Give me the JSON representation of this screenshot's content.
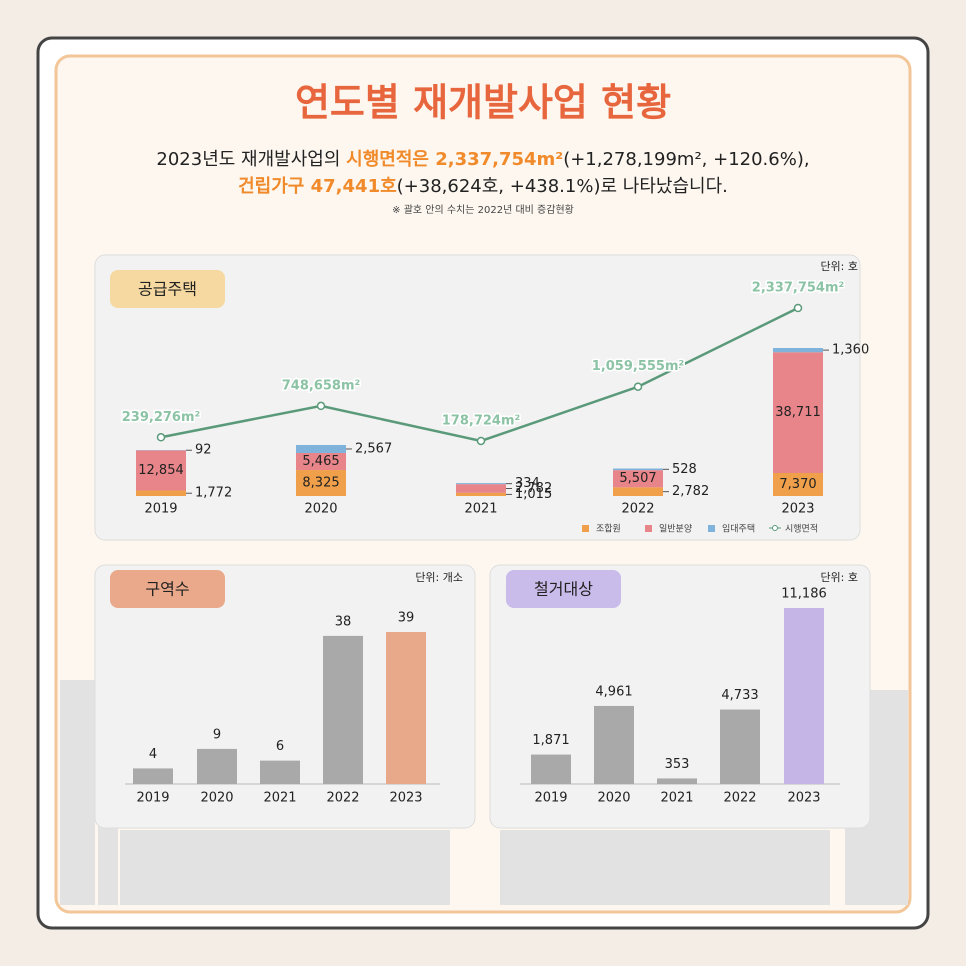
{
  "header": {
    "title": "연도별 재개발사업 현황",
    "subtitle": [
      [
        "2023년도 재개발사업의 ",
        "시행면적은 2,337,754m²",
        "(+1,278,199m², +120.6%),"
      ],
      [
        "건립가구 47,441호",
        "(+38,624호, +438.1%)로 나타났습니다."
      ]
    ],
    "note": "※ 괄호 안의 수치는 2022년 대비 증감현황"
  },
  "chart_data": [
    {
      "type": "bar",
      "stacked": true,
      "title": "공급주택",
      "unit": "단위: 호",
      "categories": [
        "2019",
        "2020",
        "2021",
        "2022",
        "2023"
      ],
      "series": [
        {
          "name": "조합원",
          "color": "#f0a04a",
          "values": [
            1772,
            8325,
            1015,
            2782,
            7370
          ],
          "value_labels": [
            "1,772",
            "8,325",
            "1,015",
            "2,782",
            "7,370"
          ]
        },
        {
          "name": "일반분양",
          "color": "#e8858a",
          "values": [
            12854,
            5465,
            2782,
            5507,
            38711
          ],
          "value_labels": [
            "12,854",
            "5,465",
            "2,782",
            "5,507",
            "38,711"
          ]
        },
        {
          "name": "임대주택",
          "color": "#7fb3db",
          "values": [
            92,
            2567,
            334,
            528,
            1360
          ],
          "value_labels": [
            "92",
            "2,567",
            "334",
            "528",
            "1,360"
          ]
        },
        {
          "name": "시행면적",
          "type": "line",
          "color": "#5a9a7a",
          "values": [
            239276,
            748658,
            178724,
            1059555,
            2337754
          ],
          "value_labels": [
            "239,276m²",
            "748,658m²",
            "178,724m²",
            "1,059,555m²",
            "2,337,754m²"
          ]
        }
      ]
    },
    {
      "type": "bar",
      "title": "구역수",
      "unit": "단위: 개소",
      "categories": [
        "2019",
        "2020",
        "2021",
        "2022",
        "2023"
      ],
      "values": [
        4,
        9,
        6,
        38,
        39
      ],
      "colors": [
        "#a9a9a9",
        "#a9a9a9",
        "#a9a9a9",
        "#a9a9a9",
        "#e8a88a"
      ]
    },
    {
      "type": "bar",
      "title": "철거대상",
      "unit": "단위: 호",
      "categories": [
        "2019",
        "2020",
        "2021",
        "2022",
        "2023"
      ],
      "values": [
        1871,
        4961,
        353,
        4733,
        11186
      ],
      "value_labels": [
        "1,871",
        "4,961",
        "353",
        "4,733",
        "11,186"
      ],
      "colors": [
        "#a9a9a9",
        "#a9a9a9",
        "#a9a9a9",
        "#a9a9a9",
        "#c4b5e6"
      ]
    }
  ]
}
